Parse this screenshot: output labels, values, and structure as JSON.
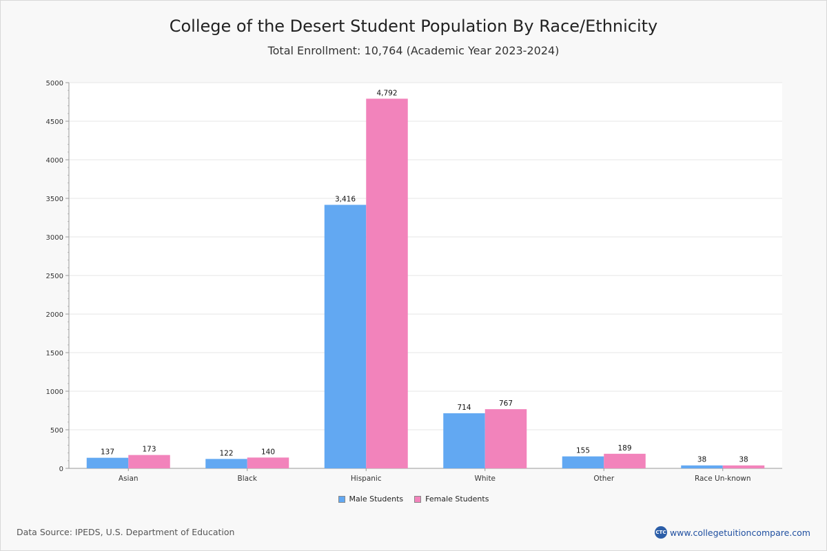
{
  "title": "College of the Desert Student Population By Race/Ethnicity",
  "subtitle": "Total Enrollment: 10,764 (Academic Year 2023-2024)",
  "footer": {
    "source": "Data Source: IPEDS, U.S. Department of Education",
    "brand": "www.collegetuitioncompare.com",
    "brand_logo": "CTC"
  },
  "colors": {
    "male": "#62a8f2",
    "female": "#f283bb",
    "grid": "#e6e6e6",
    "axis": "#999999"
  },
  "chart_data": {
    "type": "bar",
    "title": "College of the Desert Student Population By Race/Ethnicity",
    "xlabel": "",
    "ylabel": "",
    "ylim": [
      0,
      5000
    ],
    "yticks": [
      0,
      500,
      1000,
      1500,
      2000,
      2500,
      3000,
      3500,
      4000,
      4500,
      5000
    ],
    "categories": [
      "Asian",
      "Black",
      "Hispanic",
      "White",
      "Other",
      "Race Un-known"
    ],
    "series": [
      {
        "name": "Male Students",
        "values": [
          137,
          122,
          3416,
          714,
          155,
          38
        ],
        "labels": [
          "137",
          "122",
          "3,416",
          "714",
          "155",
          "38"
        ]
      },
      {
        "name": "Female Students",
        "values": [
          173,
          140,
          4792,
          767,
          189,
          38
        ],
        "labels": [
          "173",
          "140",
          "4,792",
          "767",
          "189",
          "38"
        ]
      }
    ],
    "legend": "bottom-center"
  }
}
